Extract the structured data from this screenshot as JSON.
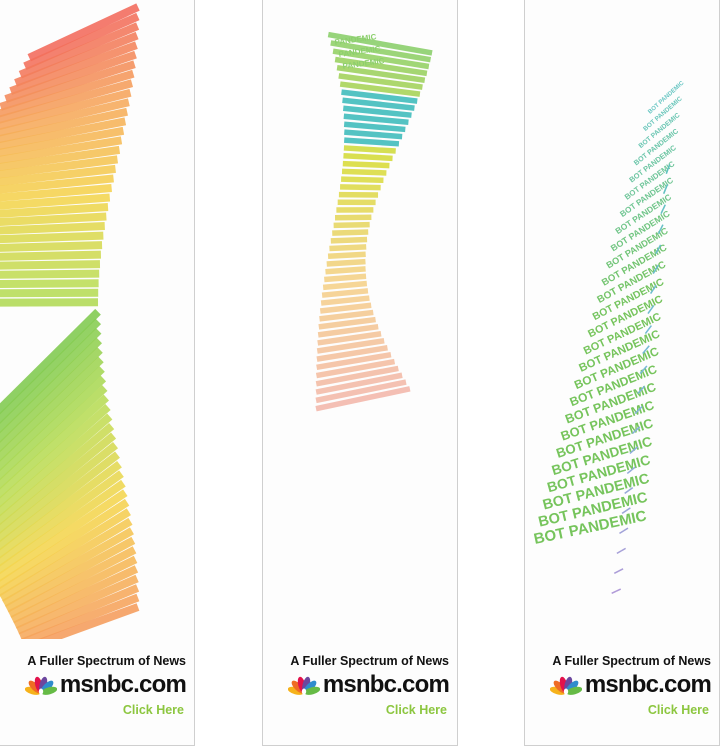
{
  "banners": [
    {
      "tagline": "A Fuller Spectrum of News",
      "brand": "msnbc.com",
      "cta": "Click Here",
      "art_colors": [
        "#f26a5b",
        "#f6a95b",
        "#f5d54e",
        "#b9dd55",
        "#7cc94f"
      ]
    },
    {
      "tagline": "A Fuller Spectrum of News",
      "brand": "msnbc.com",
      "cta": "Click Here",
      "art_colors": [
        "#f3b8ac",
        "#f5d28a",
        "#d8dc3b",
        "#41bdbd",
        "#8ccf6d"
      ],
      "art_text": "PANDEMIC"
    },
    {
      "tagline": "A Fuller Spectrum of News",
      "brand": "msnbc.com",
      "cta": "Click Here",
      "art_colors": [
        "#6bc04f",
        "#5dc2bf",
        "#7ab7d9",
        "#b09ad8"
      ],
      "art_text": "BOT PANDEMIC"
    }
  ],
  "peacock_colors": [
    "#f6b21b",
    "#ef6b24",
    "#e2124c",
    "#6c479e",
    "#2f8ccd",
    "#66bb46"
  ]
}
